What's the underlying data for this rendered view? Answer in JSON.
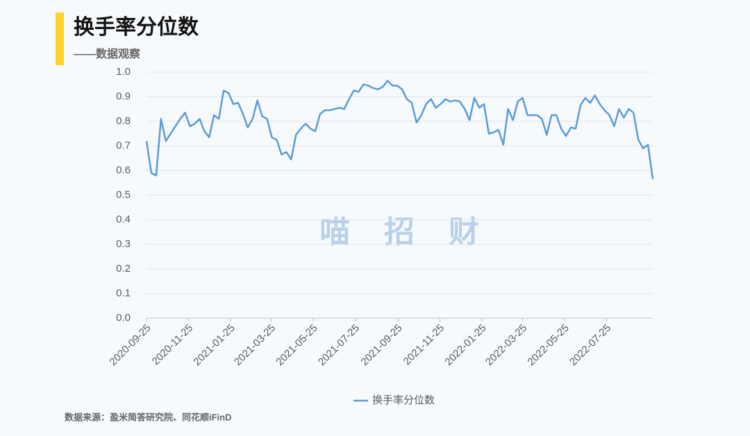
{
  "chart_data": {
    "type": "line",
    "title": "换手率分位数",
    "subtitle": "——数据观察",
    "watermark": "喵    招    财",
    "source": "数据来源：盈米简答研究院、同花顺iFinD",
    "x": [
      "2020-09-25",
      "2020-10-02",
      "2020-10-09",
      "2020-10-16",
      "2020-10-23",
      "2020-10-30",
      "2020-11-06",
      "2020-11-13",
      "2020-11-20",
      "2020-11-27",
      "2020-12-04",
      "2020-12-11",
      "2020-12-18",
      "2020-12-25",
      "2021-01-01",
      "2021-01-08",
      "2021-01-15",
      "2021-01-22",
      "2021-01-29",
      "2021-02-05",
      "2021-02-12",
      "2021-02-19",
      "2021-02-26",
      "2021-03-05",
      "2021-03-12",
      "2021-03-19",
      "2021-03-26",
      "2021-04-02",
      "2021-04-09",
      "2021-04-16",
      "2021-04-23",
      "2021-04-30",
      "2021-05-07",
      "2021-05-14",
      "2021-05-21",
      "2021-05-28",
      "2021-06-04",
      "2021-06-11",
      "2021-06-18",
      "2021-06-25",
      "2021-07-02",
      "2021-07-09",
      "2021-07-16",
      "2021-07-23",
      "2021-07-30",
      "2021-08-06",
      "2021-08-13",
      "2021-08-20",
      "2021-08-27",
      "2021-09-03",
      "2021-09-10",
      "2021-09-17",
      "2021-09-24",
      "2021-10-01",
      "2021-10-08",
      "2021-10-15",
      "2021-10-22",
      "2021-10-29",
      "2021-11-05",
      "2021-11-12",
      "2021-11-19",
      "2021-11-26",
      "2021-12-03",
      "2021-12-10",
      "2021-12-17",
      "2021-12-24",
      "2021-12-31",
      "2022-01-07",
      "2022-01-14",
      "2022-01-21",
      "2022-01-28",
      "2022-02-04",
      "2022-02-11",
      "2022-02-18",
      "2022-02-25",
      "2022-03-04",
      "2022-03-11",
      "2022-03-18",
      "2022-03-25",
      "2022-04-01",
      "2022-04-08",
      "2022-04-15",
      "2022-04-22",
      "2022-04-29",
      "2022-05-06",
      "2022-05-13",
      "2022-05-20",
      "2022-05-27",
      "2022-06-03",
      "2022-06-10",
      "2022-06-17",
      "2022-06-24",
      "2022-07-01",
      "2022-07-08",
      "2022-07-15",
      "2022-07-22",
      "2022-07-29",
      "2022-08-05",
      "2022-08-12",
      "2022-08-19",
      "2022-08-26",
      "2022-09-02",
      "2022-09-09",
      "2022-09-16",
      "2022-09-23",
      "2022-09-30"
    ],
    "series": [
      {
        "name": "换手率分位数",
        "color": "#5b9bd5",
        "values": [
          0.72,
          0.59,
          0.58,
          0.81,
          0.72,
          0.75,
          0.78,
          0.81,
          0.835,
          0.78,
          0.79,
          0.81,
          0.76,
          0.735,
          0.825,
          0.81,
          0.925,
          0.915,
          0.87,
          0.875,
          0.83,
          0.775,
          0.81,
          0.885,
          0.82,
          0.81,
          0.735,
          0.725,
          0.665,
          0.675,
          0.645,
          0.745,
          0.77,
          0.79,
          0.77,
          0.76,
          0.83,
          0.845,
          0.845,
          0.85,
          0.855,
          0.85,
          0.89,
          0.925,
          0.92,
          0.95,
          0.945,
          0.935,
          0.93,
          0.94,
          0.965,
          0.945,
          0.945,
          0.93,
          0.89,
          0.875,
          0.795,
          0.825,
          0.87,
          0.89,
          0.855,
          0.87,
          0.89,
          0.88,
          0.885,
          0.88,
          0.85,
          0.805,
          0.895,
          0.855,
          0.87,
          0.75,
          0.755,
          0.765,
          0.705,
          0.85,
          0.805,
          0.88,
          0.895,
          0.825,
          0.825,
          0.825,
          0.81,
          0.745,
          0.825,
          0.825,
          0.77,
          0.74,
          0.775,
          0.77,
          0.865,
          0.895,
          0.875,
          0.905,
          0.87,
          0.845,
          0.825,
          0.78,
          0.85,
          0.815,
          0.85,
          0.835,
          0.725,
          0.69,
          0.705,
          0.565
        ]
      }
    ],
    "xlim": [
      "2020-09-25",
      "2022-09-30"
    ],
    "xticks": [
      "2020-09-25",
      "2020-11-25",
      "2021-01-25",
      "2021-03-25",
      "2021-05-25",
      "2021-07-25",
      "2021-09-25",
      "2021-11-25",
      "2022-01-25",
      "2022-03-25",
      "2022-05-25",
      "2022-07-25"
    ],
    "ylim": [
      0,
      1
    ],
    "yticks": [
      {
        "value": 0,
        "label": "0.0"
      },
      0.1,
      0.2,
      0.3,
      0.4,
      0.5,
      0.6,
      0.7,
      0.8,
      0.9,
      {
        "value": 1,
        "label": "1.0"
      }
    ],
    "grid": true,
    "legend": "bottom"
  }
}
